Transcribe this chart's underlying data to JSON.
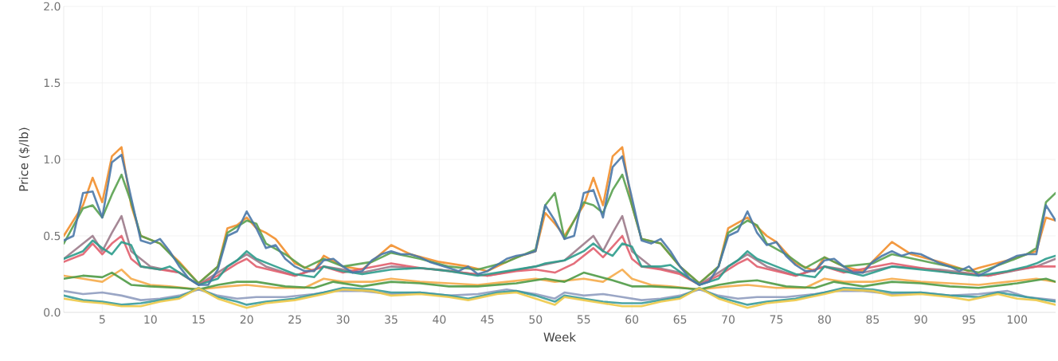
{
  "chart_data": {
    "type": "line",
    "xlabel": "Week",
    "ylabel": "Price ($/lb)",
    "xlim": [
      1,
      104
    ],
    "ylim": [
      0,
      2.0
    ],
    "xticks": [
      5,
      10,
      15,
      20,
      25,
      30,
      35,
      40,
      45,
      50,
      55,
      60,
      65,
      70,
      75,
      80,
      85,
      90,
      95,
      100
    ],
    "yticks": [
      {
        "value": 0,
        "label": "0.0"
      },
      {
        "value": 0.5,
        "label": "0.5"
      },
      {
        "value": 1.0,
        "label": "1.0"
      },
      {
        "value": 1.5,
        "label": "1.5"
      },
      {
        "value": 2.0,
        "label": "2.0"
      }
    ],
    "grid": true,
    "marker": "none",
    "line_style": "solid",
    "series": [
      {
        "color": "#f28e2b",
        "x": [
          1,
          3,
          4,
          5,
          6,
          7,
          8,
          9,
          11,
          13,
          15,
          17,
          18,
          19,
          20,
          21,
          22,
          23,
          25,
          27,
          28,
          30,
          32,
          35,
          37,
          40,
          43,
          45,
          48,
          50,
          51,
          52,
          53,
          55,
          56,
          57,
          58,
          59,
          60,
          61,
          63,
          65,
          67,
          69,
          70,
          72,
          74,
          75,
          77,
          79,
          80,
          82,
          84,
          87,
          89,
          92,
          95,
          96,
          99,
          101,
          102,
          103,
          104
        ],
        "values": [
          0.5,
          0.7,
          0.88,
          0.72,
          1.02,
          1.08,
          0.7,
          0.5,
          0.45,
          0.33,
          0.19,
          0.3,
          0.55,
          0.57,
          0.62,
          0.55,
          0.52,
          0.48,
          0.32,
          0.27,
          0.37,
          0.3,
          0.28,
          0.44,
          0.38,
          0.33,
          0.3,
          0.27,
          0.36,
          0.4,
          0.65,
          0.58,
          0.5,
          0.7,
          0.88,
          0.7,
          1.02,
          1.08,
          0.7,
          0.48,
          0.45,
          0.3,
          0.19,
          0.3,
          0.55,
          0.62,
          0.5,
          0.46,
          0.32,
          0.27,
          0.36,
          0.3,
          0.27,
          0.46,
          0.38,
          0.33,
          0.27,
          0.29,
          0.34,
          0.38,
          0.4,
          0.62,
          0.6
        ]
      },
      {
        "color": "#59a14f",
        "x": [
          1,
          3,
          4,
          5,
          6,
          7,
          8,
          9,
          11,
          13,
          15,
          17,
          18,
          20,
          21,
          22,
          24,
          26,
          28,
          30,
          33,
          35,
          38,
          41,
          44,
          47,
          50,
          51,
          52,
          53,
          55,
          56,
          57,
          58,
          59,
          60,
          61,
          63,
          65,
          67,
          69,
          70,
          72,
          73,
          74,
          76,
          78,
          80,
          82,
          85,
          87,
          90,
          93,
          96,
          99,
          101,
          102,
          103,
          104
        ],
        "values": [
          0.45,
          0.68,
          0.7,
          0.62,
          0.77,
          0.9,
          0.72,
          0.5,
          0.45,
          0.32,
          0.19,
          0.3,
          0.52,
          0.6,
          0.58,
          0.45,
          0.38,
          0.29,
          0.35,
          0.3,
          0.33,
          0.39,
          0.35,
          0.3,
          0.28,
          0.33,
          0.41,
          0.7,
          0.78,
          0.48,
          0.72,
          0.7,
          0.65,
          0.8,
          0.9,
          0.7,
          0.48,
          0.45,
          0.3,
          0.19,
          0.3,
          0.52,
          0.6,
          0.57,
          0.45,
          0.38,
          0.29,
          0.36,
          0.3,
          0.32,
          0.38,
          0.34,
          0.3,
          0.26,
          0.33,
          0.38,
          0.42,
          0.72,
          0.78
        ]
      },
      {
        "color": "#9c7b8b",
        "x": [
          1,
          4,
          5,
          6,
          7,
          8,
          10,
          13,
          15,
          18,
          20,
          22,
          25,
          28,
          32,
          35,
          40,
          45,
          50,
          53,
          56,
          57,
          58,
          59,
          60,
          62,
          65,
          67,
          70,
          72,
          74,
          77,
          80,
          84,
          87,
          92,
          97,
          102,
          104
        ],
        "values": [
          0.35,
          0.5,
          0.4,
          0.52,
          0.63,
          0.4,
          0.3,
          0.26,
          0.18,
          0.3,
          0.38,
          0.3,
          0.24,
          0.3,
          0.26,
          0.3,
          0.28,
          0.24,
          0.3,
          0.34,
          0.5,
          0.4,
          0.52,
          0.63,
          0.4,
          0.3,
          0.26,
          0.18,
          0.3,
          0.38,
          0.3,
          0.24,
          0.3,
          0.26,
          0.3,
          0.28,
          0.24,
          0.3,
          0.35
        ]
      },
      {
        "color": "#e15f6e",
        "x": [
          1,
          3,
          4,
          5,
          6,
          7,
          8,
          9,
          11,
          13,
          15,
          17,
          19,
          20,
          21,
          23,
          25,
          28,
          30,
          35,
          38,
          41,
          45,
          48,
          50,
          52,
          54,
          56,
          57,
          58,
          59,
          60,
          61,
          63,
          65,
          67,
          69,
          71,
          72,
          73,
          75,
          77,
          80,
          82,
          87,
          90,
          93,
          97,
          100,
          102,
          104
        ],
        "values": [
          0.33,
          0.38,
          0.45,
          0.38,
          0.45,
          0.5,
          0.35,
          0.3,
          0.28,
          0.26,
          0.18,
          0.24,
          0.32,
          0.35,
          0.3,
          0.27,
          0.24,
          0.3,
          0.26,
          0.32,
          0.29,
          0.27,
          0.24,
          0.27,
          0.28,
          0.26,
          0.32,
          0.42,
          0.36,
          0.43,
          0.5,
          0.35,
          0.3,
          0.28,
          0.25,
          0.18,
          0.24,
          0.32,
          0.35,
          0.3,
          0.27,
          0.24,
          0.3,
          0.26,
          0.32,
          0.29,
          0.26,
          0.24,
          0.28,
          0.3,
          0.3
        ]
      },
      {
        "color": "#f5ab4a",
        "x": [
          1,
          3,
          5,
          7,
          8,
          10,
          12,
          15,
          18,
          20,
          23,
          26,
          28,
          30,
          33,
          35,
          38,
          41,
          44,
          47,
          50,
          52,
          55,
          57,
          59,
          60,
          62,
          64,
          67,
          70,
          72,
          75,
          78,
          80,
          82,
          85,
          87,
          90,
          93,
          96,
          99,
          102,
          104
        ],
        "values": [
          0.24,
          0.22,
          0.2,
          0.28,
          0.22,
          0.18,
          0.17,
          0.15,
          0.17,
          0.18,
          0.16,
          0.16,
          0.22,
          0.2,
          0.2,
          0.22,
          0.2,
          0.19,
          0.18,
          0.2,
          0.22,
          0.2,
          0.22,
          0.2,
          0.28,
          0.22,
          0.18,
          0.17,
          0.15,
          0.17,
          0.18,
          0.16,
          0.16,
          0.22,
          0.2,
          0.2,
          0.22,
          0.2,
          0.19,
          0.18,
          0.2,
          0.22,
          0.2
        ]
      },
      {
        "color": "#4e9a45",
        "x": [
          1,
          3,
          5,
          6,
          8,
          10,
          13,
          15,
          17,
          19,
          21,
          24,
          27,
          29,
          32,
          35,
          38,
          41,
          44,
          48,
          51,
          53,
          55,
          58,
          60,
          62,
          65,
          67,
          69,
          71,
          73,
          76,
          79,
          81,
          84,
          87,
          90,
          93,
          96,
          100,
          103,
          104
        ],
        "values": [
          0.22,
          0.24,
          0.23,
          0.26,
          0.18,
          0.17,
          0.16,
          0.15,
          0.18,
          0.2,
          0.2,
          0.17,
          0.16,
          0.2,
          0.17,
          0.2,
          0.19,
          0.17,
          0.17,
          0.19,
          0.22,
          0.2,
          0.26,
          0.21,
          0.17,
          0.17,
          0.16,
          0.15,
          0.18,
          0.2,
          0.21,
          0.17,
          0.16,
          0.2,
          0.17,
          0.2,
          0.19,
          0.17,
          0.16,
          0.19,
          0.22,
          0.2
        ]
      },
      {
        "color": "#8f9cbf",
        "x": [
          1,
          3,
          5,
          7,
          9,
          11,
          13,
          15,
          17,
          19,
          21,
          24,
          27,
          29,
          32,
          35,
          38,
          41,
          44,
          47,
          50,
          52,
          53,
          55,
          57,
          59,
          61,
          63,
          65,
          67,
          69,
          71,
          73,
          76,
          79,
          81,
          84,
          87,
          90,
          93,
          96,
          99,
          101,
          104
        ],
        "values": [
          0.14,
          0.12,
          0.13,
          0.11,
          0.08,
          0.09,
          0.11,
          0.15,
          0.11,
          0.09,
          0.1,
          0.1,
          0.12,
          0.14,
          0.14,
          0.12,
          0.13,
          0.11,
          0.12,
          0.15,
          0.12,
          0.09,
          0.13,
          0.11,
          0.12,
          0.1,
          0.08,
          0.09,
          0.11,
          0.15,
          0.11,
          0.09,
          0.1,
          0.1,
          0.12,
          0.14,
          0.14,
          0.12,
          0.13,
          0.11,
          0.12,
          0.14,
          0.1,
          0.08
        ]
      },
      {
        "color": "#3a9b9b",
        "x": [
          1,
          3,
          5,
          7,
          9,
          11,
          13,
          15,
          17,
          19,
          20,
          22,
          25,
          28,
          30,
          33,
          35,
          38,
          41,
          43,
          46,
          48,
          50,
          52,
          53,
          55,
          57,
          59,
          61,
          63,
          65,
          67,
          69,
          72,
          74,
          77,
          80,
          82,
          85,
          87,
          90,
          93,
          96,
          98,
          100,
          102,
          104
        ],
        "values": [
          0.11,
          0.08,
          0.07,
          0.05,
          0.06,
          0.08,
          0.1,
          0.16,
          0.1,
          0.07,
          0.05,
          0.07,
          0.09,
          0.13,
          0.16,
          0.15,
          0.13,
          0.13,
          0.11,
          0.09,
          0.13,
          0.14,
          0.11,
          0.07,
          0.11,
          0.09,
          0.07,
          0.06,
          0.06,
          0.08,
          0.1,
          0.16,
          0.1,
          0.05,
          0.07,
          0.09,
          0.13,
          0.16,
          0.15,
          0.13,
          0.13,
          0.11,
          0.1,
          0.13,
          0.11,
          0.09,
          0.07
        ]
      },
      {
        "color": "#edc948",
        "x": [
          1,
          3,
          5,
          7,
          9,
          11,
          13,
          15,
          17,
          19,
          20,
          22,
          25,
          28,
          30,
          33,
          35,
          38,
          41,
          43,
          46,
          48,
          50,
          52,
          53,
          55,
          57,
          59,
          61,
          63,
          65,
          67,
          69,
          71,
          72,
          74,
          77,
          80,
          82,
          85,
          87,
          90,
          93,
          95,
          98,
          100,
          102,
          104
        ],
        "values": [
          0.09,
          0.07,
          0.06,
          0.04,
          0.04,
          0.07,
          0.09,
          0.16,
          0.09,
          0.05,
          0.03,
          0.06,
          0.08,
          0.12,
          0.15,
          0.14,
          0.11,
          0.12,
          0.1,
          0.08,
          0.12,
          0.13,
          0.09,
          0.05,
          0.1,
          0.08,
          0.06,
          0.04,
          0.04,
          0.07,
          0.09,
          0.16,
          0.09,
          0.05,
          0.03,
          0.06,
          0.08,
          0.12,
          0.15,
          0.14,
          0.11,
          0.12,
          0.1,
          0.08,
          0.12,
          0.09,
          0.08,
          0.05
        ]
      },
      {
        "color": "#2c9c8c",
        "x": [
          1,
          3,
          4,
          5,
          6,
          7,
          8,
          9,
          11,
          12,
          14,
          15,
          17,
          18,
          19,
          20,
          21,
          23,
          25,
          27,
          28,
          30,
          32,
          35,
          38,
          41,
          44,
          47,
          50,
          51,
          53,
          55,
          56,
          57,
          58,
          59,
          60,
          61,
          63,
          64,
          66,
          67,
          69,
          70,
          71,
          72,
          73,
          75,
          77,
          79,
          80,
          82,
          84,
          87,
          90,
          93,
          96,
          99,
          101,
          102,
          103,
          104
        ],
        "values": [
          0.35,
          0.4,
          0.47,
          0.42,
          0.38,
          0.46,
          0.44,
          0.3,
          0.28,
          0.3,
          0.22,
          0.18,
          0.22,
          0.3,
          0.34,
          0.4,
          0.35,
          0.3,
          0.25,
          0.23,
          0.3,
          0.27,
          0.25,
          0.28,
          0.29,
          0.27,
          0.24,
          0.27,
          0.3,
          0.32,
          0.34,
          0.4,
          0.45,
          0.4,
          0.37,
          0.45,
          0.43,
          0.3,
          0.3,
          0.31,
          0.22,
          0.18,
          0.22,
          0.3,
          0.34,
          0.4,
          0.35,
          0.3,
          0.25,
          0.23,
          0.3,
          0.27,
          0.24,
          0.3,
          0.28,
          0.26,
          0.24,
          0.27,
          0.3,
          0.32,
          0.35,
          0.37
        ]
      },
      {
        "color": "#4a78a8",
        "x": [
          1,
          2,
          3,
          4,
          5,
          6,
          7,
          8,
          9,
          10,
          11,
          12,
          13,
          14,
          15,
          16,
          17,
          18,
          19,
          20,
          21,
          22,
          23,
          24,
          25,
          26,
          27,
          28,
          29,
          30,
          31,
          32,
          33,
          34,
          35,
          36,
          37,
          38,
          39,
          40,
          41,
          42,
          43,
          44,
          45,
          46,
          47,
          48,
          49,
          50,
          51,
          52,
          53,
          54,
          55,
          56,
          57,
          58,
          59,
          60,
          61,
          62,
          63,
          64,
          65,
          66,
          67,
          68,
          69,
          70,
          71,
          72,
          73,
          74,
          75,
          76,
          77,
          78,
          79,
          80,
          81,
          82,
          83,
          84,
          85,
          86,
          87,
          88,
          89,
          90,
          91,
          92,
          93,
          94,
          95,
          96,
          97,
          98,
          99,
          100,
          101,
          102,
          103,
          104
        ],
        "values": [
          0.47,
          0.5,
          0.78,
          0.79,
          0.62,
          0.98,
          1.03,
          0.75,
          0.47,
          0.45,
          0.48,
          0.4,
          0.3,
          0.22,
          0.18,
          0.18,
          0.28,
          0.5,
          0.53,
          0.66,
          0.55,
          0.42,
          0.44,
          0.35,
          0.3,
          0.27,
          0.27,
          0.34,
          0.35,
          0.3,
          0.26,
          0.27,
          0.34,
          0.38,
          0.4,
          0.38,
          0.38,
          0.36,
          0.33,
          0.31,
          0.29,
          0.27,
          0.3,
          0.25,
          0.27,
          0.31,
          0.35,
          0.37,
          0.38,
          0.4,
          0.7,
          0.6,
          0.48,
          0.5,
          0.78,
          0.8,
          0.62,
          0.95,
          1.02,
          0.75,
          0.47,
          0.45,
          0.48,
          0.4,
          0.3,
          0.22,
          0.18,
          0.2,
          0.3,
          0.5,
          0.53,
          0.66,
          0.52,
          0.44,
          0.46,
          0.37,
          0.31,
          0.27,
          0.27,
          0.34,
          0.35,
          0.3,
          0.26,
          0.26,
          0.33,
          0.37,
          0.4,
          0.37,
          0.39,
          0.38,
          0.35,
          0.32,
          0.3,
          0.27,
          0.3,
          0.24,
          0.27,
          0.31,
          0.34,
          0.37,
          0.38,
          0.38,
          0.7,
          0.6
        ]
      }
    ]
  }
}
